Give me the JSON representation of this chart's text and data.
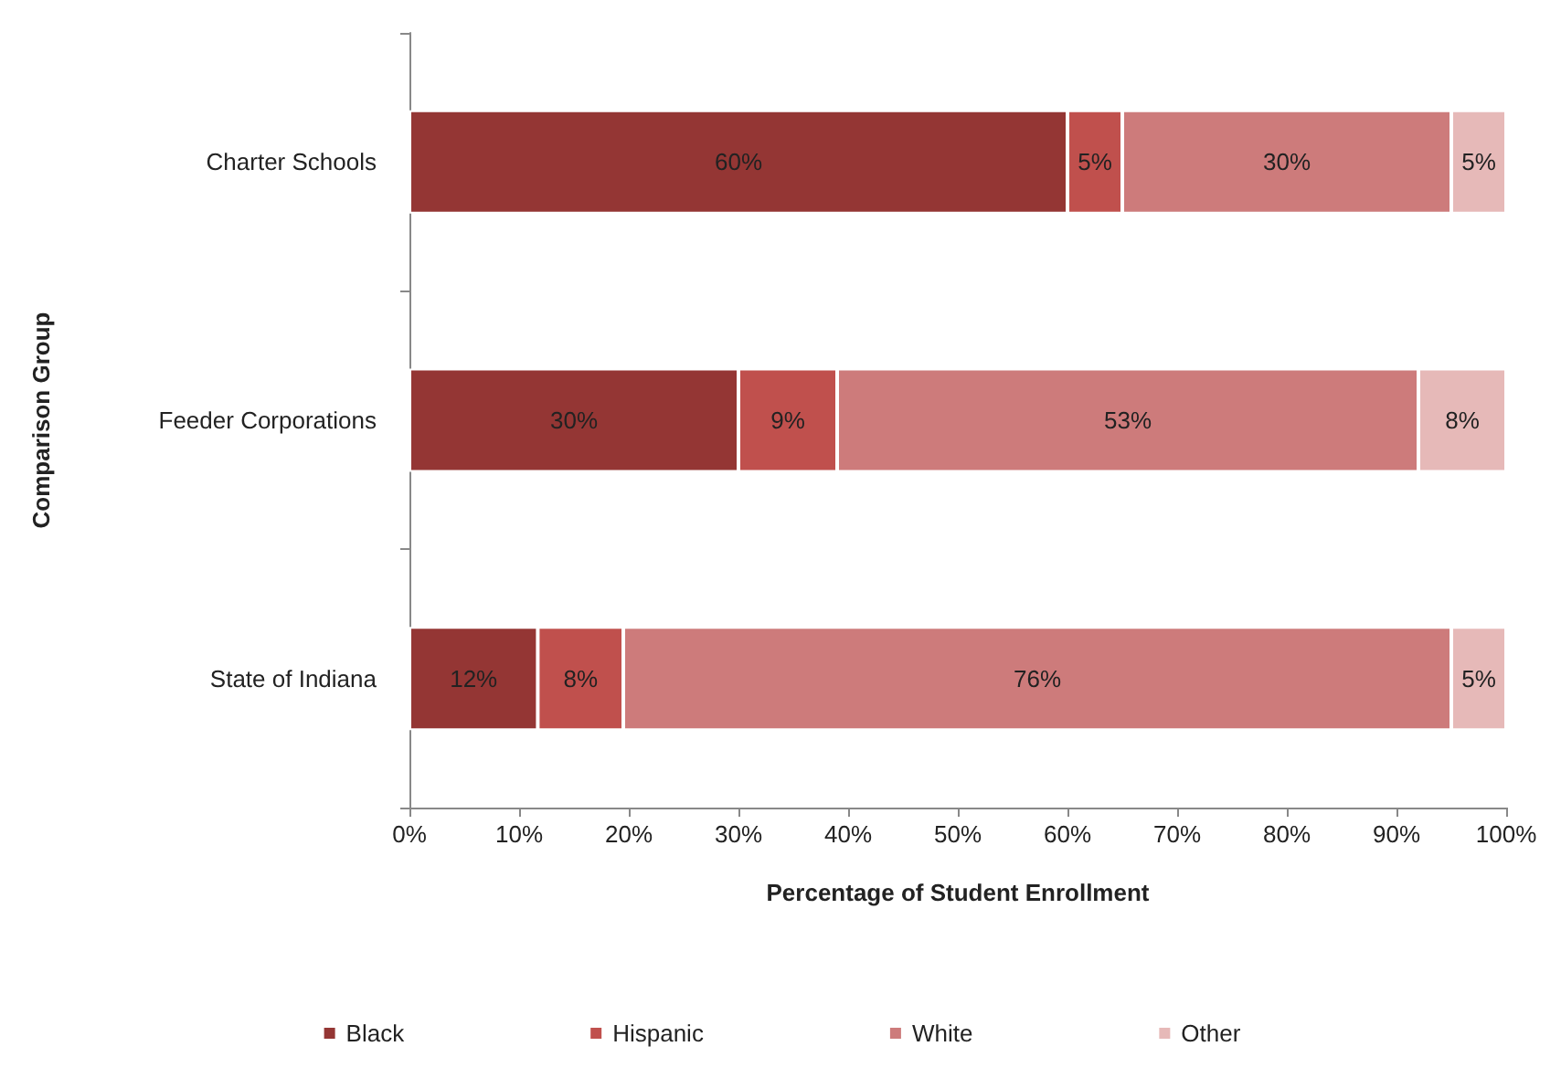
{
  "chart_data": {
    "type": "bar",
    "orientation": "horizontal",
    "stacked": true,
    "xlabel": "Percentage of Student Enrollment",
    "ylabel": "Comparison Group",
    "categories": [
      "Charter Schools",
      "Feeder Corporations",
      "State of Indiana"
    ],
    "series": [
      {
        "name": "Black",
        "color": "#943634",
        "values": [
          60,
          30,
          11.7
        ],
        "value_labels": [
          "60%",
          "30%",
          "12%"
        ]
      },
      {
        "name": "Hispanic",
        "color": "#c0504d",
        "values": [
          5,
          9,
          7.8
        ],
        "value_labels": [
          "5%",
          "9%",
          "8%"
        ]
      },
      {
        "name": "White",
        "color": "#cd7b7b",
        "values": [
          30,
          53,
          75.5
        ],
        "value_labels": [
          "30%",
          "53%",
          "76%"
        ]
      },
      {
        "name": "Other",
        "color": "#e6b9b8",
        "values": [
          5,
          8,
          5
        ],
        "value_labels": [
          "5%",
          "8%",
          "5%"
        ]
      }
    ],
    "xlim": [
      0,
      100
    ],
    "xticks": [
      {
        "value": 0,
        "label": "0%"
      },
      {
        "value": 10,
        "label": "10%"
      },
      {
        "value": 20,
        "label": "20%"
      },
      {
        "value": 30,
        "label": "30%"
      },
      {
        "value": 40,
        "label": "40%"
      },
      {
        "value": 50,
        "label": "50%"
      },
      {
        "value": 60,
        "label": "60%"
      },
      {
        "value": 70,
        "label": "70%"
      },
      {
        "value": 80,
        "label": "80%"
      },
      {
        "value": 90,
        "label": "90%"
      },
      {
        "value": 100,
        "label": "100%"
      }
    ],
    "grid": false,
    "legend": "bottom"
  }
}
